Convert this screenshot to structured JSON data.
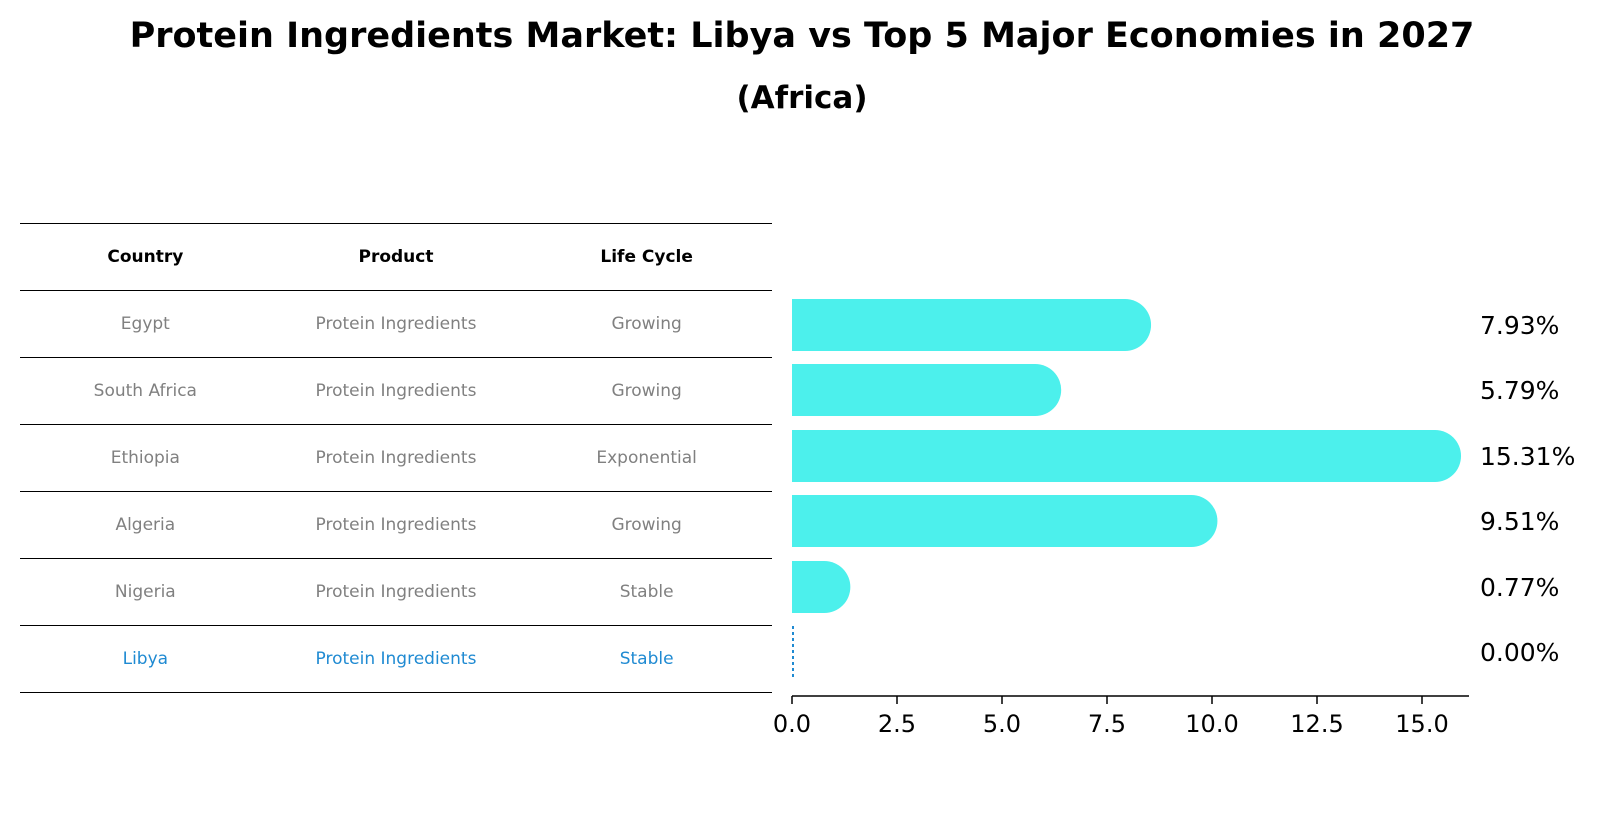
{
  "title": "Protein Ingredients Market: Libya vs Top 5 Major Economies in 2027",
  "subtitle": "(Africa)",
  "table": {
    "headers": [
      "Country",
      "Product",
      "Life Cycle"
    ],
    "rows": [
      [
        "Egypt",
        "Protein Ingredients",
        "Growing"
      ],
      [
        "South Africa",
        "Protein Ingredients",
        "Growing"
      ],
      [
        "Ethiopia",
        "Protein Ingredients",
        "Exponential"
      ],
      [
        "Algeria",
        "Protein Ingredients",
        "Growing"
      ],
      [
        "Nigeria",
        "Protein Ingredients",
        "Stable"
      ],
      [
        "Libya",
        "Protein Ingredients",
        "Stable"
      ]
    ],
    "highlight_row": 5
  },
  "colors": {
    "bar": "#4cf0ec",
    "highlight": "#1f8ad2",
    "text": "#808080"
  },
  "chart_data": {
    "type": "bar",
    "orientation": "horizontal",
    "title": "Protein Ingredients Market: Libya vs Top 5 Major Economies in 2027",
    "categories": [
      "Egypt",
      "South Africa",
      "Ethiopia",
      "Algeria",
      "Nigeria",
      "Libya"
    ],
    "values": [
      7.93,
      5.79,
      15.31,
      9.51,
      0.77,
      0.0
    ],
    "value_labels": [
      "7.93%",
      "5.79%",
      "15.31%",
      "9.51%",
      "0.77%",
      "0.00%"
    ],
    "xlim": [
      0,
      16
    ],
    "xticks": [
      0.0,
      2.5,
      5.0,
      7.5,
      10.0,
      12.5,
      15.0
    ],
    "xtick_labels": [
      "0.0",
      "2.5",
      "5.0",
      "7.5",
      "10.0",
      "12.5",
      "15.0"
    ],
    "xlabel": "",
    "ylabel": ""
  }
}
